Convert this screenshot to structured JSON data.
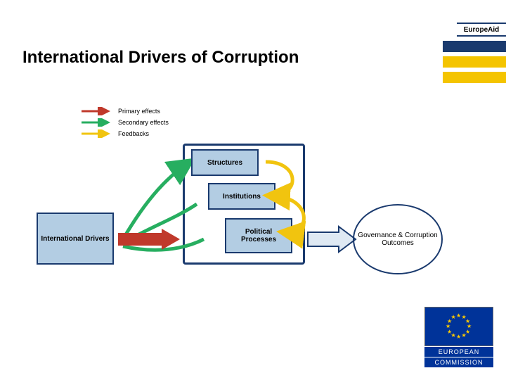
{
  "header_tab": "EuropeAid",
  "page_title": "International Drivers of Corruption",
  "corner_bars": {
    "colors": [
      "#1a3a6e",
      "#f4c400",
      "#f4c400"
    ]
  },
  "legend": {
    "items": [
      {
        "label": "Primary effects",
        "color": "#c0392b"
      },
      {
        "label": "Secondary effects",
        "color": "#27ae60"
      },
      {
        "label": "Feedbacks",
        "color": "#f1c40f"
      }
    ]
  },
  "boxes": {
    "driver": "International Drivers",
    "struct": "Structures",
    "inst": "Institutions",
    "polit": "Political Processes"
  },
  "outcome": "Governance & Corruption Outcomes",
  "logo": {
    "line1": "EUROPEAN",
    "line2": "COMMISSION"
  },
  "colors": {
    "box_fill": "#b3cde3",
    "box_border": "#1a3a6e",
    "primary": "#c0392b",
    "secondary": "#27ae60",
    "feedback": "#f1c40f",
    "eu_blue": "#003399",
    "eu_gold": "#ffcc00"
  }
}
